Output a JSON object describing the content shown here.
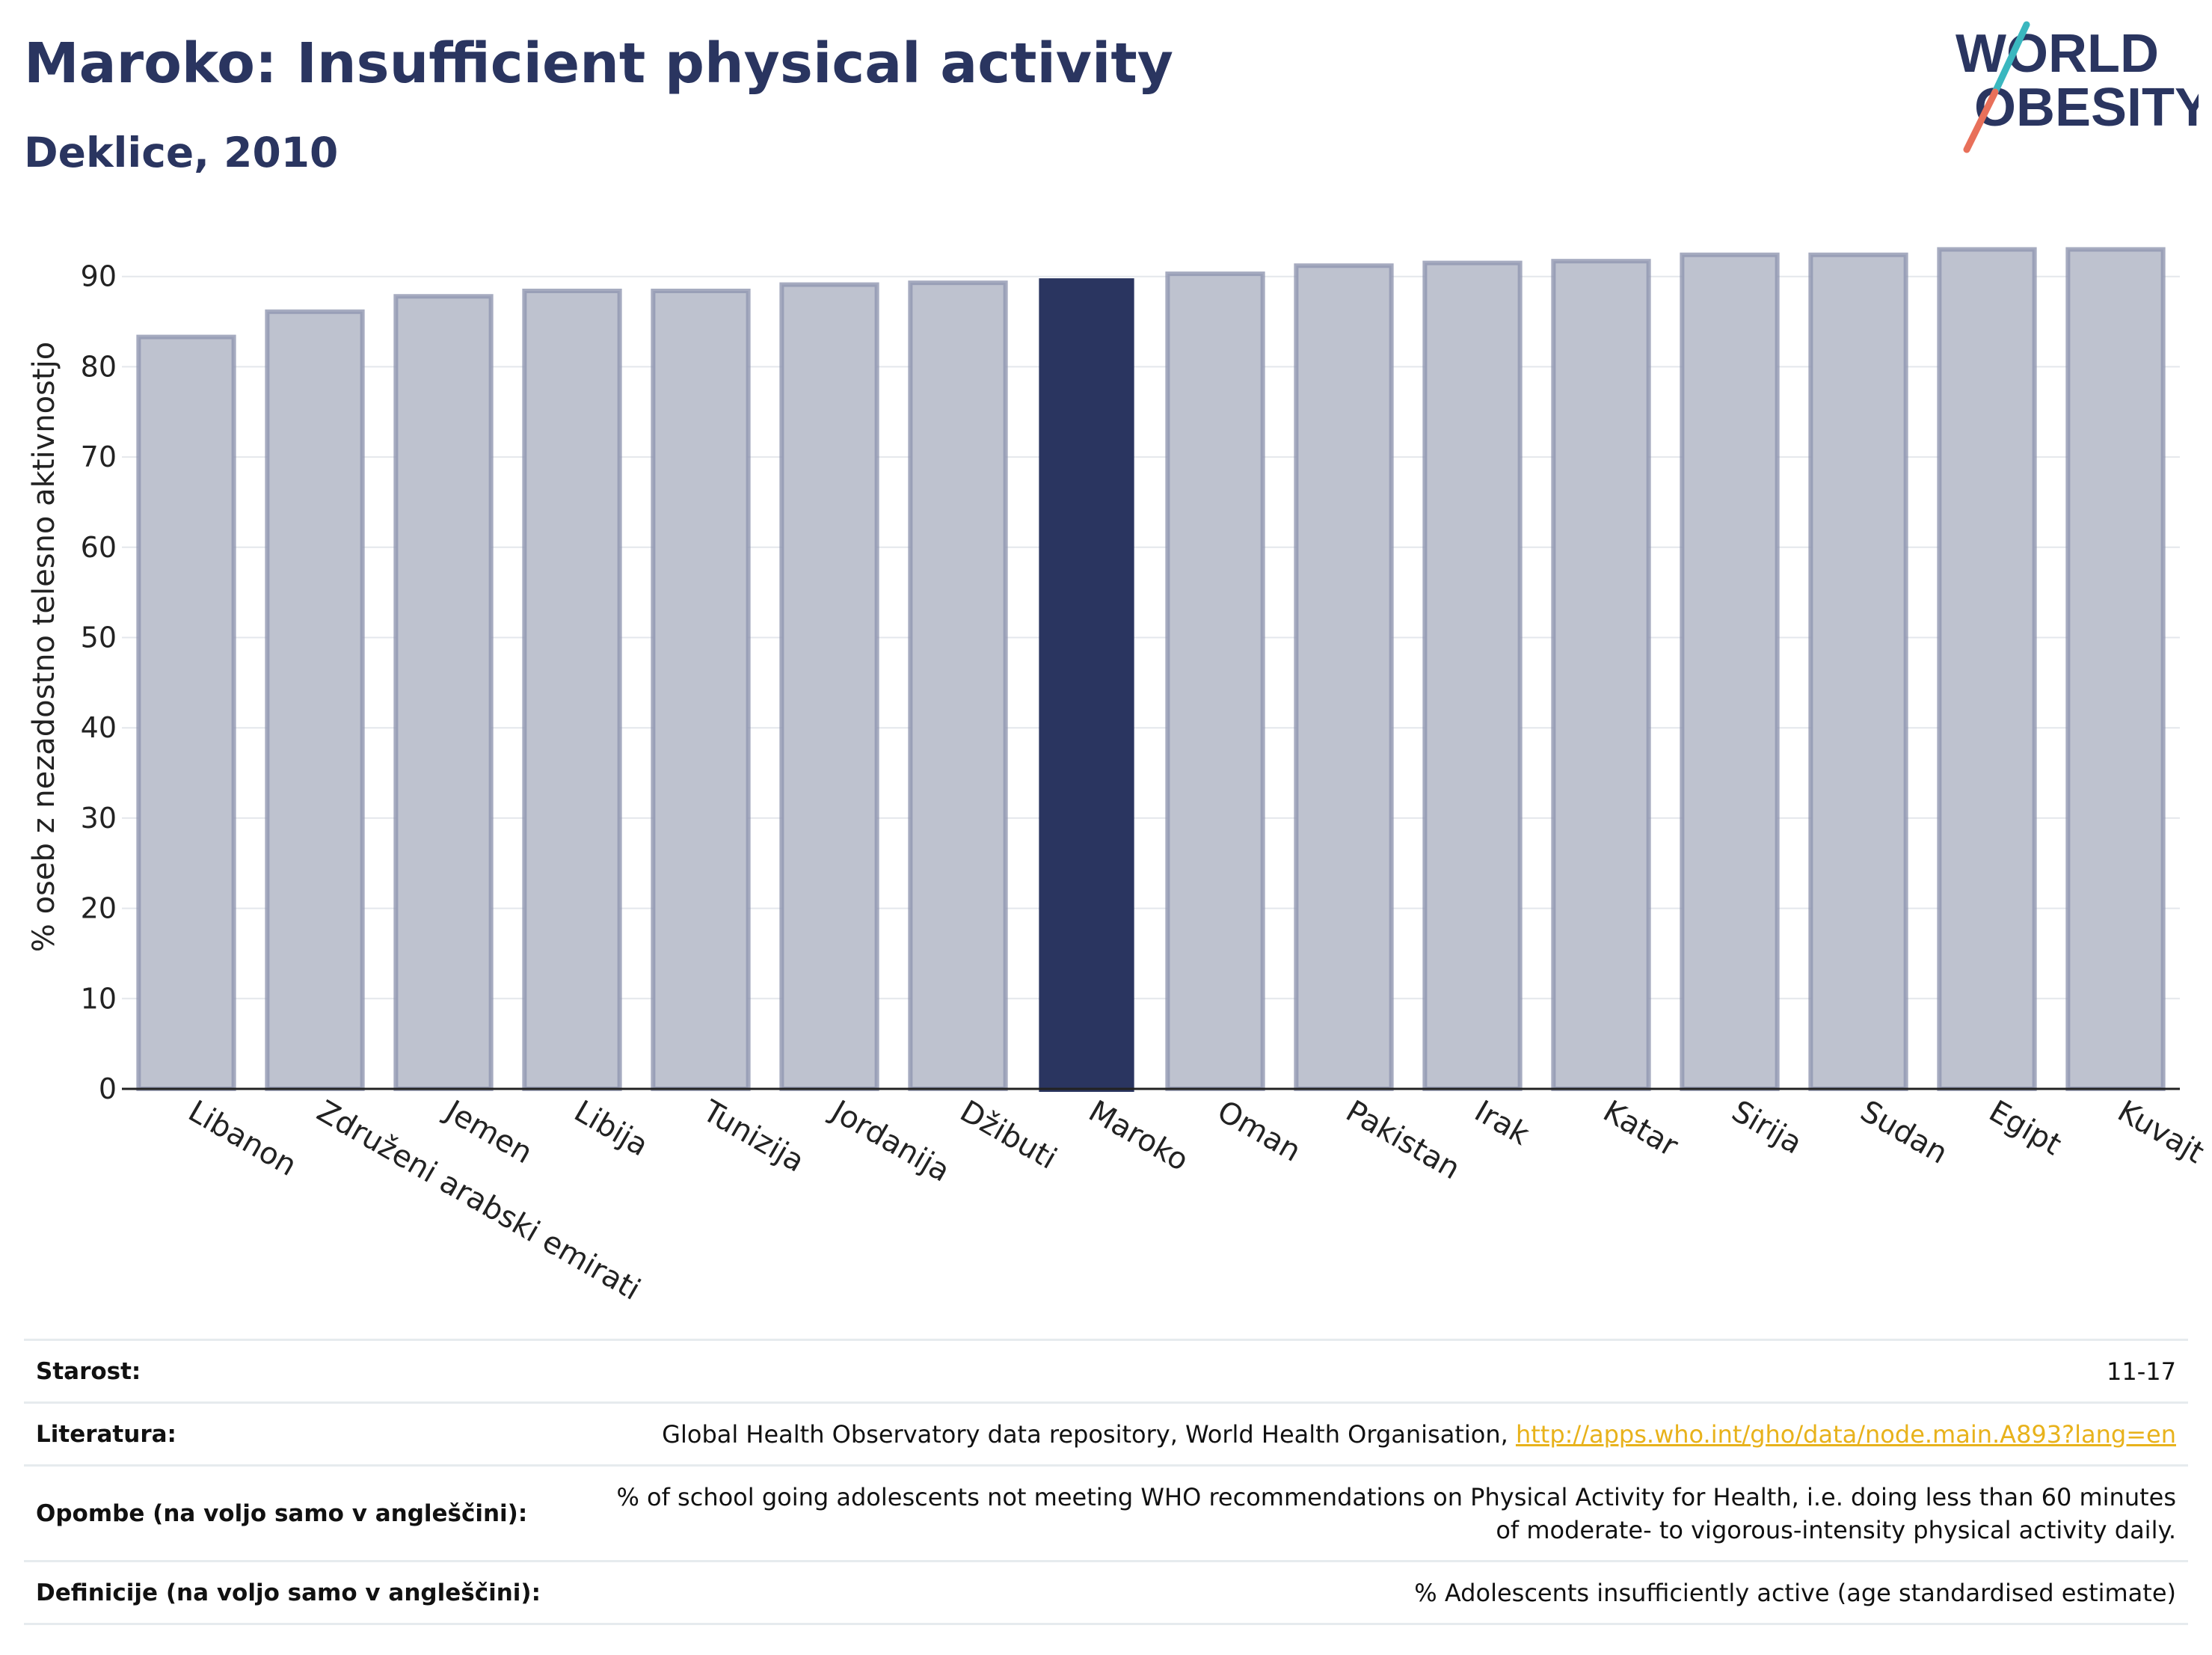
{
  "header": {
    "title": "Maroko: Insufficient physical activity",
    "subtitle": "Deklice, 2010"
  },
  "logo": {
    "line1": "WORLD",
    "line2": "OBESITY",
    "accent_teal": "#3ab7bf",
    "accent_coral": "#e8705a"
  },
  "colors": {
    "highlight_bar": "#2a3560",
    "other_bar_fill": "#bec2cf",
    "other_bar_stroke": "#9096b0"
  },
  "chart_data": {
    "type": "bar",
    "ylabel": "% oseb z nezadostno telesno aktivnostjo",
    "xlabel": "",
    "ylim": [
      0,
      93
    ],
    "yticks": [
      0,
      10,
      20,
      30,
      40,
      50,
      60,
      70,
      80,
      90
    ],
    "grid": true,
    "highlight": "Maroko",
    "categories": [
      "Libanon",
      "Združeni arabski emirati",
      "Jemen",
      "Libija",
      "Tunizija",
      "Jordanija",
      "Džibuti",
      "Maroko",
      "Oman",
      "Pakistan",
      "Irak",
      "Katar",
      "Sirija",
      "Sudan",
      "Egipt",
      "Kuvajt"
    ],
    "values": [
      83.3,
      86.1,
      87.8,
      88.4,
      88.4,
      89.1,
      89.3,
      89.8,
      90.3,
      91.2,
      91.5,
      91.7,
      92.4,
      92.4,
      93.0,
      93.0
    ]
  },
  "info": {
    "rows": [
      {
        "label": "Starost:",
        "value": "11-17",
        "link": ""
      },
      {
        "label": "Literatura:",
        "value": "Global Health Observatory data repository, World Health Organisation, ",
        "link": "http://apps.who.int/gho/data/node.main.A893?lang=en"
      },
      {
        "label": "Opombe (na voljo samo v angleščini):",
        "value": "% of school going adolescents not meeting WHO recommendations on Physical Activity for Health, i.e. doing less than 60 minutes of moderate- to vigorous-intensity physical activity daily.",
        "link": ""
      },
      {
        "label": "Definicije (na voljo samo v angleščini):",
        "value": "% Adolescents insufficiently active (age standardised estimate)",
        "link": ""
      }
    ]
  }
}
